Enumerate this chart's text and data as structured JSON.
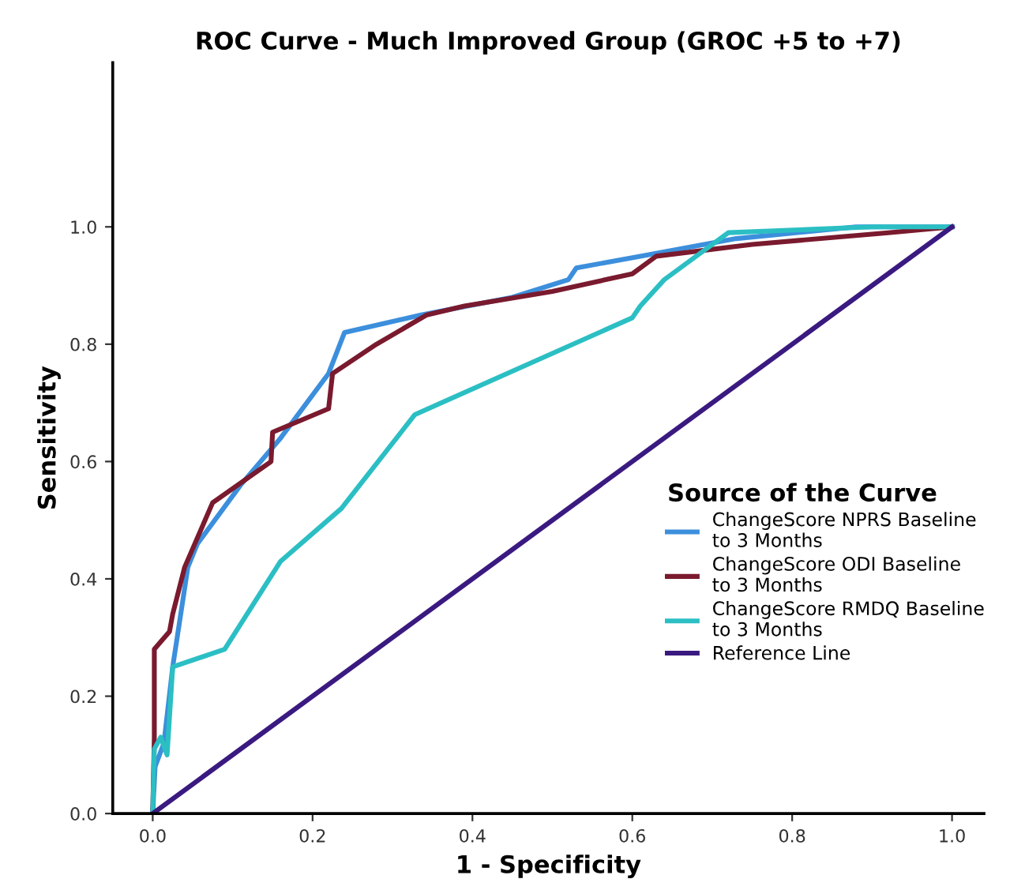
{
  "chart_data": {
    "type": "line",
    "title": "ROC Curve - Much Improved Group (GROC +5 to +7)",
    "xlabel": "1 - Specificity",
    "ylabel": "Sensitivity",
    "legend_title": "Source of the Curve",
    "legend": "right",
    "grid": false,
    "marker": "none",
    "line_style": "solid",
    "xlim": [
      -0.05,
      1.04
    ],
    "ylim": [
      0,
      1.28
    ],
    "xticks": [
      {
        "value": 0,
        "label": "0.0"
      },
      {
        "value": 0.2,
        "label": "0.2"
      },
      {
        "value": 0.4,
        "label": "0.4"
      },
      {
        "value": 0.6,
        "label": "0.6"
      },
      {
        "value": 0.8,
        "label": "0.8"
      },
      {
        "value": 1,
        "label": "1.0"
      }
    ],
    "yticks": [
      {
        "value": 0,
        "label": "0.0"
      },
      {
        "value": 0.2,
        "label": "0.2"
      },
      {
        "value": 0.4,
        "label": "0.4"
      },
      {
        "value": 0.6,
        "label": "0.6"
      },
      {
        "value": 0.8,
        "label": "0.8"
      },
      {
        "value": 1,
        "label": "1.0"
      }
    ],
    "series": [
      {
        "name": "ChangeScore NPRS Baseline to 3 Months",
        "color": "#3c8fdc",
        "x": [
          0,
          0.003,
          0.014,
          0.025,
          0.044,
          0.056,
          0.11,
          0.16,
          0.22,
          0.24,
          0.336,
          0.45,
          0.52,
          0.53,
          0.61,
          0.73,
          0.88,
          1
        ],
        "values": [
          0,
          0.08,
          0.12,
          0.25,
          0.42,
          0.46,
          0.56,
          0.64,
          0.75,
          0.82,
          0.85,
          0.88,
          0.91,
          0.93,
          0.95,
          0.98,
          1,
          1
        ]
      },
      {
        "name": "ChangeScore ODI Baseline to 3 Months",
        "color": "#7a1a2e",
        "x": [
          0,
          0.002,
          0.002,
          0.021,
          0.025,
          0.04,
          0.075,
          0.148,
          0.15,
          0.22,
          0.225,
          0.28,
          0.343,
          0.39,
          0.5,
          0.6,
          0.63,
          0.75,
          0.92,
          1
        ],
        "values": [
          0,
          0.13,
          0.28,
          0.31,
          0.34,
          0.42,
          0.53,
          0.6,
          0.65,
          0.69,
          0.75,
          0.8,
          0.85,
          0.865,
          0.89,
          0.92,
          0.95,
          0.97,
          0.99,
          1
        ]
      },
      {
        "name": "ChangeScore RMDQ Baseline to 3 Months",
        "color": "#2bbfc4",
        "x": [
          0,
          0.002,
          0.01,
          0.018,
          0.025,
          0.09,
          0.16,
          0.236,
          0.328,
          0.6,
          0.61,
          0.64,
          0.68,
          0.72,
          0.9,
          1
        ],
        "values": [
          0,
          0.11,
          0.13,
          0.1,
          0.25,
          0.28,
          0.43,
          0.52,
          0.68,
          0.845,
          0.865,
          0.91,
          0.95,
          0.99,
          1,
          1
        ]
      },
      {
        "name": "Reference Line",
        "color": "#3a1a80",
        "x": [
          0,
          1
        ],
        "values": [
          0,
          1
        ]
      }
    ]
  }
}
